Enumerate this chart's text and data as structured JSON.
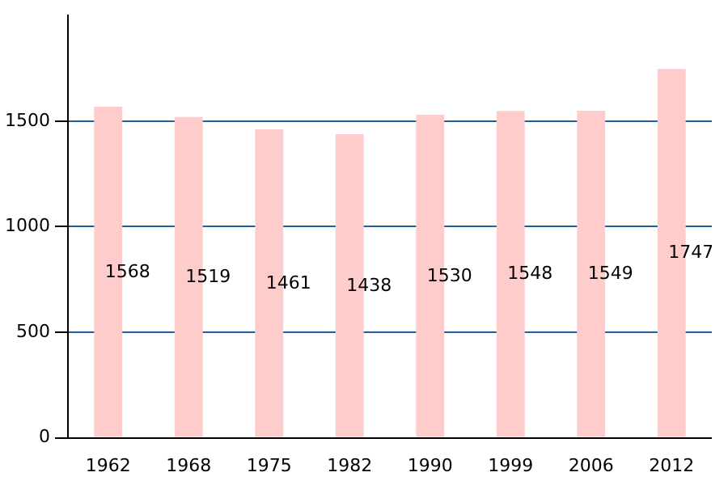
{
  "chart_data": {
    "type": "bar",
    "categories": [
      "1962",
      "1968",
      "1975",
      "1982",
      "1990",
      "1999",
      "2006",
      "2012"
    ],
    "values": [
      1568,
      1519,
      1461,
      1438,
      1530,
      1548,
      1549,
      1747
    ],
    "color": "#ffcccc",
    "ylim": [
      0,
      2000
    ],
    "yticks": [
      0,
      500,
      1000,
      1500
    ],
    "grid": "y",
    "data_labels": true
  }
}
